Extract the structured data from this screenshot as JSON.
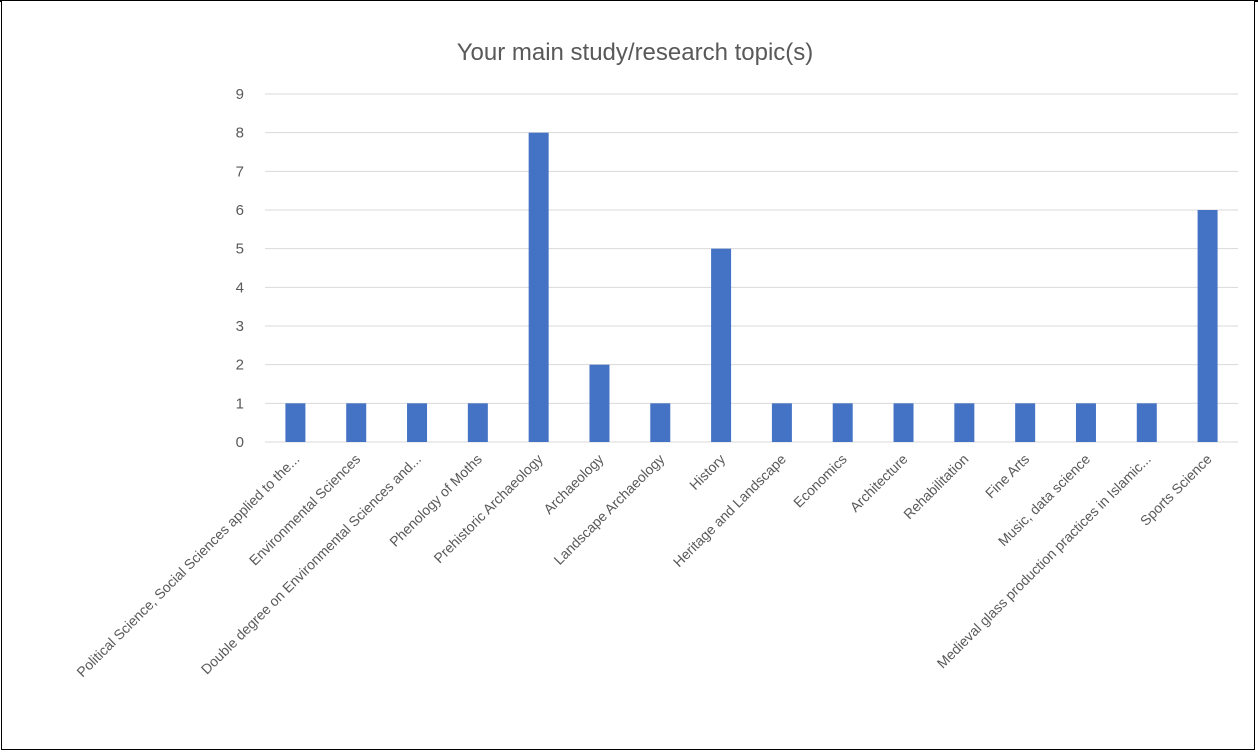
{
  "chart_data": {
    "type": "bar",
    "title": "Your main study/research topic(s)",
    "xlabel": "",
    "ylabel": "",
    "ylim": [
      0,
      9
    ],
    "yticks": [
      "0",
      "1",
      "2",
      "3",
      "4",
      "5",
      "6",
      "7",
      "8",
      "9"
    ],
    "grid": true,
    "legend": "none",
    "bar_color": "#4472C4",
    "grid_color": "#D9D9D9",
    "categories": [
      "Political Science, Social Sciences applied to the...",
      "Environmental Sciences",
      "Double degree on Environmental Sciences and...",
      "Phenology of Moths",
      "Prehistoric Archaeology",
      "Archaeology",
      "Landscape Archaeology",
      "History",
      "Heritage and Landscape",
      "Economics",
      "Architecture",
      "Rehabilitation",
      "Fine Arts",
      "Music, data science",
      "Medieval glass production practices in Islamic...",
      "Sports Science"
    ],
    "values": [
      1,
      1,
      1,
      1,
      8,
      2,
      1,
      5,
      1,
      1,
      1,
      1,
      1,
      1,
      1,
      6
    ]
  }
}
